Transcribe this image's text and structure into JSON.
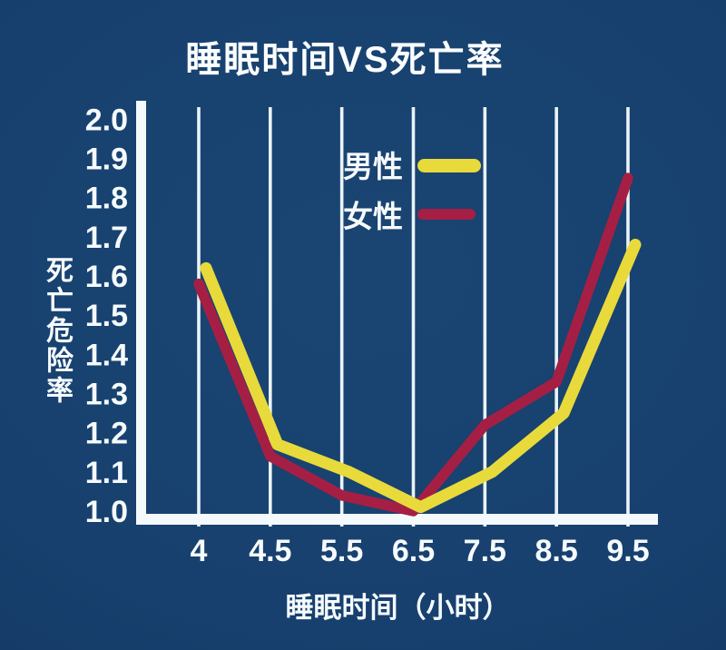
{
  "title": "睡眠时间VS死亡率",
  "colors": {
    "background": "#17406e",
    "gridline": "#eaf3f7",
    "axis": "#f4fafc",
    "text": "#f5fafc",
    "male_line": "#e8da3a",
    "female_line": "#a51f44"
  },
  "chart_data": {
    "type": "line",
    "title": "睡眠时间VS死亡率",
    "xlabel": "睡眠时间（小时）",
    "ylabel": "死亡危险率",
    "categories": [
      4,
      4.5,
      5.5,
      6.5,
      7.5,
      8.5,
      9.5
    ],
    "x_tick_labels": [
      "4",
      "4.5",
      "5.5",
      "6.5",
      "7.5",
      "8.5",
      "9.5"
    ],
    "y_tick_labels": [
      "2.0",
      "1.9",
      "1.8",
      "1.7",
      "1.6",
      "1.5",
      "1.4",
      "1.3",
      "1.2",
      "1.1",
      "1.0"
    ],
    "ylim": [
      1.0,
      2.0
    ],
    "grid": "vertical-only",
    "legend_position": "inside-top-center",
    "series": [
      {
        "id": "male",
        "name": "男性",
        "color": "#e8da3a",
        "values": [
          1.62,
          1.17,
          1.1,
          1.01,
          1.1,
          1.25,
          1.68
        ]
      },
      {
        "id": "female",
        "name": "女性",
        "color": "#a51f44",
        "values": [
          1.58,
          1.14,
          1.04,
          1.0,
          1.22,
          1.33,
          1.85
        ]
      }
    ]
  }
}
